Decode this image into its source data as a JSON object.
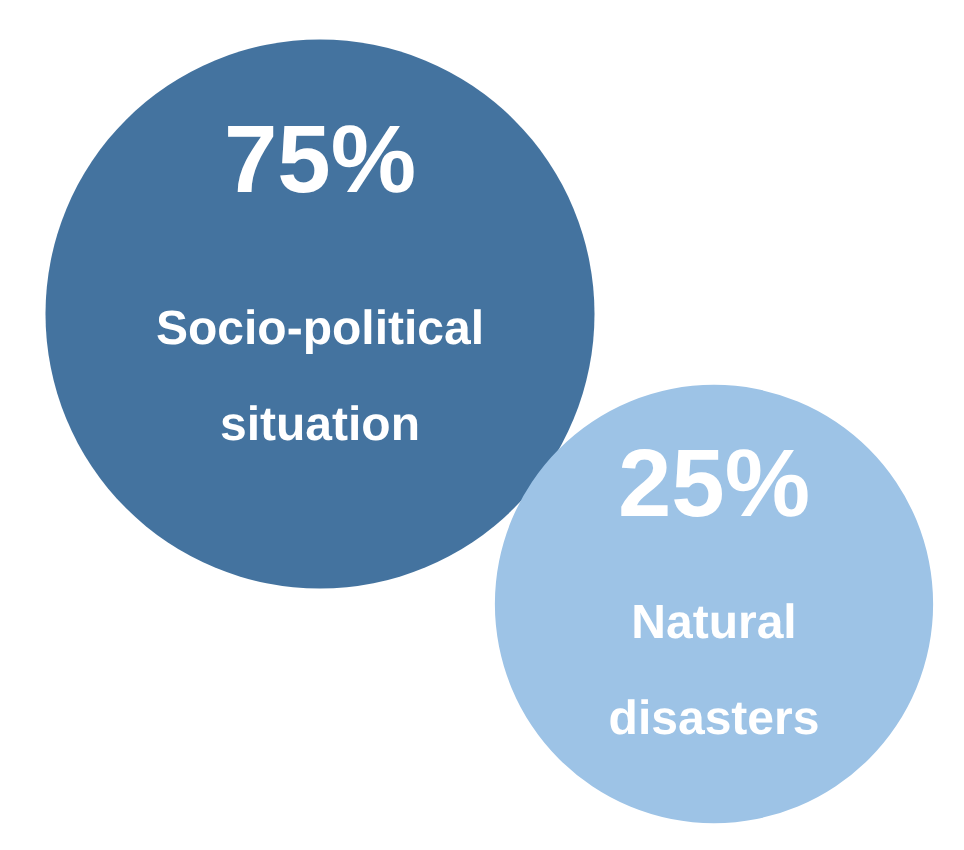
{
  "chart_data": {
    "type": "other",
    "categories": [
      "Socio-political situation",
      "Natural disasters"
    ],
    "values": [
      75,
      25
    ],
    "value_labels": [
      "75%",
      "25%"
    ],
    "colors": [
      "#44739f",
      "#9dc3e6"
    ]
  }
}
